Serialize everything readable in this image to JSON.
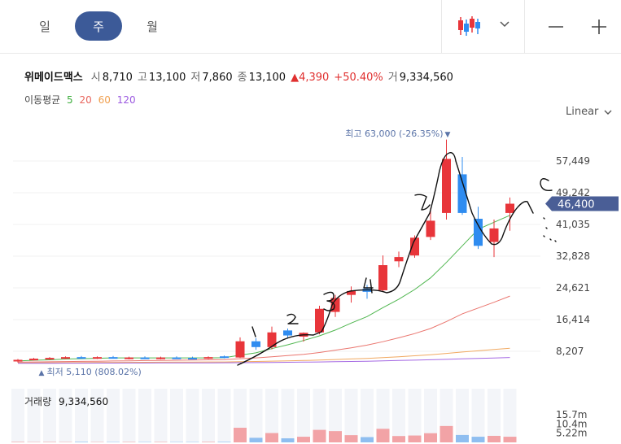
{
  "tabs": [
    {
      "label": "일",
      "active": false
    },
    {
      "label": "주",
      "active": true
    },
    {
      "label": "월",
      "active": false
    }
  ],
  "toolbar": {
    "candle_icon": "candlestick-icon",
    "chevron_icon": "chevron-down-icon",
    "zoom_out_icon": "minus-icon",
    "zoom_in_icon": "plus-icon"
  },
  "quote": {
    "name": "위메이드맥스",
    "open_label": "시",
    "open": "8,710",
    "high_label": "고",
    "high": "13,100",
    "low_label": "저",
    "low": "7,860",
    "close_label": "종",
    "close": "13,100",
    "change": "▲4,390",
    "change_pct": "+50.40%",
    "volume_label": "거",
    "volume": "9,334,560"
  },
  "moving_average": {
    "label": "이동평균",
    "periods": [
      {
        "label": "5",
        "color": "#3cae3c"
      },
      {
        "label": "20",
        "color": "#e8665e"
      },
      {
        "label": "60",
        "color": "#f0a050"
      },
      {
        "label": "120",
        "color": "#9b59e0"
      }
    ]
  },
  "scale_label": "Linear",
  "colors": {
    "up": "#e8353a",
    "down": "#2f8cf0",
    "accent": "#3c5a98",
    "price_tag": "#4a5e96"
  },
  "chart_data": {
    "type": "candlestick",
    "y_ticks": [
      "57,449",
      "49,242",
      "41,035",
      "32,828",
      "24,621",
      "16,414",
      "8,207"
    ],
    "y_tick_values": [
      57449,
      49242,
      41035,
      32828,
      24621,
      16414,
      8207
    ],
    "ylim": [
      4000,
      65000
    ],
    "current_price_label": "46,400",
    "current_price": 46400,
    "high_annotation": "최고 63,000 (-26.35%)",
    "high_marker": "▼",
    "low_annotation": "최저 5,110 (808.02%)",
    "low_marker": "▲",
    "volume_label": "거래량",
    "volume_value": "9,334,560",
    "volume_ticks": [
      "15.7m",
      "10.4m",
      "5.22m"
    ],
    "volume_tick_values": [
      15.7,
      10.4,
      5.22
    ],
    "volume_max": 18,
    "candles": [
      {
        "o": 5600,
        "h": 6200,
        "l": 5300,
        "c": 6000
      },
      {
        "o": 6000,
        "h": 6500,
        "l": 5800,
        "c": 6300
      },
      {
        "o": 6300,
        "h": 6700,
        "l": 6000,
        "c": 6500
      },
      {
        "o": 6500,
        "h": 6900,
        "l": 6200,
        "c": 6700
      },
      {
        "o": 6700,
        "h": 7000,
        "l": 6300,
        "c": 6500
      },
      {
        "o": 6500,
        "h": 6900,
        "l": 6200,
        "c": 6700
      },
      {
        "o": 6700,
        "h": 7000,
        "l": 6300,
        "c": 6500
      },
      {
        "o": 6500,
        "h": 6800,
        "l": 6100,
        "c": 6600
      },
      {
        "o": 6600,
        "h": 6900,
        "l": 6200,
        "c": 6400
      },
      {
        "o": 6400,
        "h": 6800,
        "l": 6100,
        "c": 6600
      },
      {
        "o": 6600,
        "h": 6900,
        "l": 6300,
        "c": 6500
      },
      {
        "o": 6500,
        "h": 6800,
        "l": 6200,
        "c": 6400
      },
      {
        "o": 6400,
        "h": 6900,
        "l": 6200,
        "c": 6700
      },
      {
        "o": 6900,
        "h": 7100,
        "l": 6400,
        "c": 6600
      },
      {
        "o": 6600,
        "h": 11800,
        "l": 6500,
        "c": 10800
      },
      {
        "o": 10800,
        "h": 11600,
        "l": 8600,
        "c": 9300
      },
      {
        "o": 9300,
        "h": 14600,
        "l": 8700,
        "c": 13100
      },
      {
        "o": 13600,
        "h": 14100,
        "l": 11500,
        "c": 12300
      },
      {
        "o": 12000,
        "h": 13100,
        "l": 10700,
        "c": 13000
      },
      {
        "o": 13100,
        "h": 20000,
        "l": 12600,
        "c": 19200
      },
      {
        "o": 18400,
        "h": 22800,
        "l": 17100,
        "c": 22000
      },
      {
        "o": 22800,
        "h": 25000,
        "l": 20800,
        "c": 23800
      },
      {
        "o": 24400,
        "h": 25400,
        "l": 21800,
        "c": 23600
      },
      {
        "o": 24000,
        "h": 33000,
        "l": 23600,
        "c": 30500
      },
      {
        "o": 31500,
        "h": 34000,
        "l": 30000,
        "c": 32600
      },
      {
        "o": 33000,
        "h": 38200,
        "l": 32400,
        "c": 37600
      },
      {
        "o": 37800,
        "h": 45300,
        "l": 37000,
        "c": 42000
      },
      {
        "o": 44000,
        "h": 63000,
        "l": 42300,
        "c": 58000
      },
      {
        "o": 54000,
        "h": 58500,
        "l": 43500,
        "c": 44000
      },
      {
        "o": 42500,
        "h": 45600,
        "l": 34700,
        "c": 35500
      },
      {
        "o": 36500,
        "h": 42300,
        "l": 32600,
        "c": 40000
      },
      {
        "o": 44000,
        "h": 48000,
        "l": 39400,
        "c": 46400
      }
    ],
    "volumes": [
      0.3,
      0.2,
      0.25,
      0.2,
      0.3,
      0.2,
      0.2,
      0.25,
      0.2,
      0.25,
      0.2,
      0.2,
      0.3,
      0.3,
      8.3,
      2.6,
      5.3,
      2.3,
      3.2,
      7.1,
      6.4,
      4.1,
      3.0,
      7.7,
      3.6,
      3.9,
      5.2,
      9.3,
      4.2,
      3.2,
      3.7,
      3.2
    ],
    "ma": {
      "5": [
        5700,
        5900,
        6000,
        6200,
        6300,
        6400,
        6500,
        6500,
        6500,
        6500,
        6500,
        6500,
        6500,
        6550,
        7200,
        7800,
        8900,
        9900,
        11000,
        12200,
        13700,
        15500,
        17200,
        19500,
        21700,
        24200,
        27200,
        31200,
        35500,
        39800,
        41600,
        43400
      ],
      "20": [
        5400,
        5450,
        5500,
        5550,
        5600,
        5650,
        5700,
        5750,
        5800,
        5850,
        5900,
        5950,
        6000,
        6050,
        6300,
        6500,
        6800,
        7100,
        7400,
        7900,
        8500,
        9100,
        9800,
        10700,
        11700,
        12800,
        14100,
        15900,
        17900,
        19400,
        20900,
        22500
      ],
      "60": [
        5200,
        5220,
        5240,
        5260,
        5280,
        5300,
        5320,
        5340,
        5360,
        5380,
        5400,
        5420,
        5440,
        5460,
        5520,
        5580,
        5660,
        5740,
        5820,
        5940,
        6080,
        6220,
        6380,
        6580,
        6800,
        7040,
        7320,
        7660,
        8020,
        8340,
        8660,
        9000
      ],
      "120": [
        5100,
        5110,
        5120,
        5130,
        5140,
        5150,
        5160,
        5170,
        5180,
        5190,
        5200,
        5210,
        5220,
        5230,
        5260,
        5290,
        5330,
        5370,
        5410,
        5460,
        5520,
        5580,
        5650,
        5730,
        5820,
        5910,
        6010,
        6120,
        6240,
        6360,
        6480,
        6600
      ]
    }
  }
}
